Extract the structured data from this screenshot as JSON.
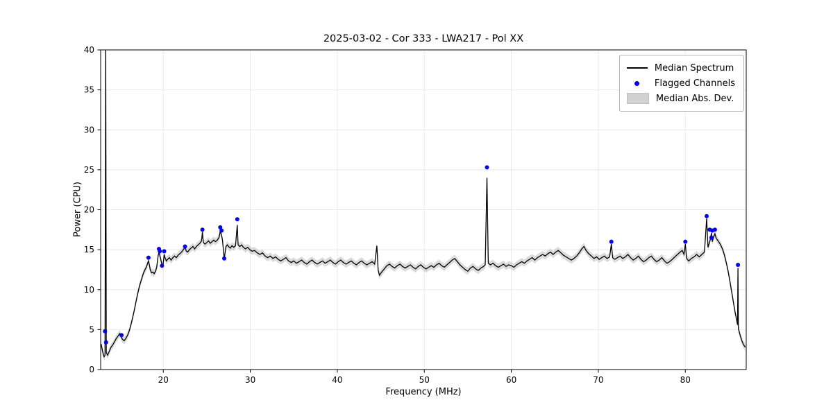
{
  "chart_data": {
    "type": "line",
    "title": "2025-03-02 - Cor 333 - LWA217 - Pol XX",
    "xlabel": "Frequency (MHz)",
    "ylabel": "Power (CPU)",
    "xlim": [
      12.8,
      87.0
    ],
    "ylim": [
      0,
      40
    ],
    "xticks": [
      20,
      30,
      40,
      50,
      60,
      70,
      80
    ],
    "yticks": [
      0,
      5,
      10,
      15,
      20,
      25,
      30,
      35,
      40
    ],
    "grid": true,
    "legend": {
      "position": "upper right",
      "median": "Median Spectrum",
      "flagged": "Flagged Channels",
      "mad": "Median Abs. Dev."
    },
    "colors": {
      "median": "#000000",
      "flagged": "#0000ff",
      "mad": "#c8c8c8",
      "grid": "#e8e8e8",
      "frame": "#000000"
    },
    "mad_halfwidth": 0.45,
    "median_spectrum": [
      [
        12.85,
        3.2
      ],
      [
        13.0,
        2.4
      ],
      [
        13.1,
        1.9
      ],
      [
        13.2,
        1.6
      ],
      [
        13.3,
        1.8
      ],
      [
        13.38,
        41.0
      ],
      [
        13.45,
        2.1
      ],
      [
        13.6,
        1.8
      ],
      [
        13.8,
        2.3
      ],
      [
        14.0,
        2.8
      ],
      [
        14.2,
        3.1
      ],
      [
        14.4,
        3.5
      ],
      [
        14.6,
        3.9
      ],
      [
        14.8,
        4.2
      ],
      [
        15.0,
        4.5
      ],
      [
        15.15,
        4.1
      ],
      [
        15.3,
        3.8
      ],
      [
        15.5,
        3.6
      ],
      [
        15.7,
        3.9
      ],
      [
        15.9,
        4.3
      ],
      [
        16.1,
        4.9
      ],
      [
        16.3,
        5.7
      ],
      [
        16.5,
        6.6
      ],
      [
        16.7,
        7.6
      ],
      [
        16.9,
        8.7
      ],
      [
        17.1,
        9.7
      ],
      [
        17.3,
        10.6
      ],
      [
        17.5,
        11.3
      ],
      [
        17.7,
        12.0
      ],
      [
        17.9,
        12.5
      ],
      [
        18.05,
        12.8
      ],
      [
        18.2,
        13.3
      ],
      [
        18.3,
        13.6
      ],
      [
        18.4,
        13.1
      ],
      [
        18.5,
        12.5
      ],
      [
        18.65,
        12.1
      ],
      [
        18.8,
        12.2
      ],
      [
        18.95,
        12.0
      ],
      [
        19.1,
        12.3
      ],
      [
        19.25,
        12.8
      ],
      [
        19.4,
        14.2
      ],
      [
        19.5,
        14.7
      ],
      [
        19.6,
        14.3
      ],
      [
        19.75,
        13.6
      ],
      [
        19.9,
        12.9
      ],
      [
        20.0,
        13.3
      ],
      [
        20.1,
        14.4
      ],
      [
        20.2,
        14.0
      ],
      [
        20.35,
        13.6
      ],
      [
        20.5,
        13.8
      ],
      [
        20.7,
        14.0
      ],
      [
        20.9,
        13.7
      ],
      [
        21.1,
        14.0
      ],
      [
        21.3,
        14.2
      ],
      [
        21.5,
        14.0
      ],
      [
        21.7,
        14.3
      ],
      [
        21.9,
        14.5
      ],
      [
        22.1,
        14.7
      ],
      [
        22.3,
        15.0
      ],
      [
        22.5,
        15.3
      ],
      [
        22.65,
        14.8
      ],
      [
        22.8,
        14.7
      ],
      [
        23.0,
        15.0
      ],
      [
        23.2,
        15.2
      ],
      [
        23.4,
        15.4
      ],
      [
        23.6,
        15.1
      ],
      [
        23.8,
        15.4
      ],
      [
        24.0,
        15.6
      ],
      [
        24.2,
        15.8
      ],
      [
        24.4,
        16.1
      ],
      [
        24.5,
        17.2
      ],
      [
        24.6,
        15.9
      ],
      [
        24.8,
        15.7
      ],
      [
        25.0,
        15.9
      ],
      [
        25.2,
        16.1
      ],
      [
        25.4,
        15.8
      ],
      [
        25.6,
        16.0
      ],
      [
        25.8,
        16.2
      ],
      [
        26.0,
        16.0
      ],
      [
        26.2,
        16.2
      ],
      [
        26.4,
        16.5
      ],
      [
        26.55,
        17.3
      ],
      [
        26.7,
        16.8
      ],
      [
        26.8,
        16.2
      ],
      [
        26.9,
        15.1
      ],
      [
        27.0,
        13.8
      ],
      [
        27.1,
        14.6
      ],
      [
        27.2,
        15.4
      ],
      [
        27.35,
        15.6
      ],
      [
        27.5,
        15.4
      ],
      [
        27.7,
        15.2
      ],
      [
        27.9,
        15.5
      ],
      [
        28.1,
        15.3
      ],
      [
        28.3,
        15.5
      ],
      [
        28.5,
        18.1
      ],
      [
        28.6,
        15.6
      ],
      [
        28.8,
        15.4
      ],
      [
        29.0,
        15.6
      ],
      [
        29.2,
        15.3
      ],
      [
        29.45,
        15.1
      ],
      [
        29.7,
        15.3
      ],
      [
        29.95,
        15.0
      ],
      [
        30.2,
        14.8
      ],
      [
        30.5,
        14.9
      ],
      [
        30.8,
        14.6
      ],
      [
        31.1,
        14.4
      ],
      [
        31.4,
        14.6
      ],
      [
        31.7,
        14.2
      ],
      [
        32.0,
        14.0
      ],
      [
        32.3,
        14.2
      ],
      [
        32.6,
        13.9
      ],
      [
        32.9,
        14.1
      ],
      [
        33.2,
        13.8
      ],
      [
        33.5,
        13.6
      ],
      [
        33.8,
        13.8
      ],
      [
        34.1,
        14.0
      ],
      [
        34.4,
        13.6
      ],
      [
        34.7,
        13.4
      ],
      [
        35.0,
        13.6
      ],
      [
        35.3,
        13.3
      ],
      [
        35.6,
        13.5
      ],
      [
        35.9,
        13.7
      ],
      [
        36.2,
        13.4
      ],
      [
        36.5,
        13.2
      ],
      [
        36.8,
        13.5
      ],
      [
        37.1,
        13.7
      ],
      [
        37.4,
        13.4
      ],
      [
        37.7,
        13.2
      ],
      [
        38.0,
        13.4
      ],
      [
        38.3,
        13.6
      ],
      [
        38.6,
        13.3
      ],
      [
        38.9,
        13.5
      ],
      [
        39.2,
        13.7
      ],
      [
        39.5,
        13.4
      ],
      [
        39.8,
        13.2
      ],
      [
        40.1,
        13.5
      ],
      [
        40.4,
        13.7
      ],
      [
        40.7,
        13.4
      ],
      [
        41.0,
        13.2
      ],
      [
        41.3,
        13.4
      ],
      [
        41.6,
        13.6
      ],
      [
        41.9,
        13.3
      ],
      [
        42.2,
        13.1
      ],
      [
        42.5,
        13.4
      ],
      [
        42.8,
        13.6
      ],
      [
        43.1,
        13.3
      ],
      [
        43.4,
        13.1
      ],
      [
        43.7,
        13.3
      ],
      [
        44.0,
        13.5
      ],
      [
        44.3,
        13.2
      ],
      [
        44.55,
        15.5
      ],
      [
        44.7,
        12.4
      ],
      [
        44.85,
        11.8
      ],
      [
        45.1,
        12.2
      ],
      [
        45.4,
        12.6
      ],
      [
        45.7,
        13.0
      ],
      [
        46.0,
        13.2
      ],
      [
        46.3,
        12.9
      ],
      [
        46.6,
        12.7
      ],
      [
        46.9,
        13.0
      ],
      [
        47.2,
        13.2
      ],
      [
        47.5,
        12.9
      ],
      [
        47.8,
        12.7
      ],
      [
        48.1,
        12.9
      ],
      [
        48.4,
        13.1
      ],
      [
        48.7,
        12.8
      ],
      [
        49.0,
        12.6
      ],
      [
        49.3,
        12.9
      ],
      [
        49.6,
        13.1
      ],
      [
        49.9,
        12.8
      ],
      [
        50.2,
        12.6
      ],
      [
        50.5,
        12.8
      ],
      [
        50.8,
        13.0
      ],
      [
        51.1,
        12.8
      ],
      [
        51.4,
        13.1
      ],
      [
        51.7,
        13.3
      ],
      [
        52.0,
        13.0
      ],
      [
        52.3,
        12.8
      ],
      [
        52.6,
        13.1
      ],
      [
        52.9,
        13.4
      ],
      [
        53.2,
        13.7
      ],
      [
        53.5,
        13.9
      ],
      [
        53.8,
        13.5
      ],
      [
        54.1,
        13.1
      ],
      [
        54.4,
        12.8
      ],
      [
        54.7,
        12.5
      ],
      [
        55.0,
        12.3
      ],
      [
        55.3,
        12.7
      ],
      [
        55.6,
        12.9
      ],
      [
        55.9,
        12.6
      ],
      [
        56.2,
        12.4
      ],
      [
        56.5,
        12.7
      ],
      [
        56.8,
        12.9
      ],
      [
        57.0,
        13.1
      ],
      [
        57.2,
        24.0
      ],
      [
        57.35,
        13.3
      ],
      [
        57.6,
        13.1
      ],
      [
        57.9,
        13.3
      ],
      [
        58.2,
        13.0
      ],
      [
        58.5,
        12.8
      ],
      [
        58.8,
        13.0
      ],
      [
        59.1,
        13.2
      ],
      [
        59.4,
        12.9
      ],
      [
        59.7,
        13.1
      ],
      [
        60.0,
        13.0
      ],
      [
        60.3,
        12.8
      ],
      [
        60.6,
        13.1
      ],
      [
        60.9,
        13.3
      ],
      [
        61.2,
        13.5
      ],
      [
        61.5,
        13.3
      ],
      [
        61.8,
        13.6
      ],
      [
        62.1,
        13.8
      ],
      [
        62.4,
        14.0
      ],
      [
        62.7,
        13.7
      ],
      [
        63.0,
        14.0
      ],
      [
        63.3,
        14.2
      ],
      [
        63.6,
        14.4
      ],
      [
        63.9,
        14.2
      ],
      [
        64.2,
        14.5
      ],
      [
        64.5,
        14.7
      ],
      [
        64.8,
        14.4
      ],
      [
        65.1,
        14.7
      ],
      [
        65.4,
        14.9
      ],
      [
        65.7,
        14.6
      ],
      [
        66.0,
        14.3
      ],
      [
        66.3,
        14.1
      ],
      [
        66.6,
        13.9
      ],
      [
        66.9,
        13.7
      ],
      [
        67.2,
        13.9
      ],
      [
        67.5,
        14.2
      ],
      [
        67.8,
        14.6
      ],
      [
        68.1,
        15.1
      ],
      [
        68.35,
        15.4
      ],
      [
        68.6,
        14.9
      ],
      [
        68.9,
        14.5
      ],
      [
        69.2,
        14.2
      ],
      [
        69.5,
        13.9
      ],
      [
        69.8,
        14.1
      ],
      [
        70.1,
        13.8
      ],
      [
        70.4,
        14.0
      ],
      [
        70.7,
        14.2
      ],
      [
        71.0,
        13.9
      ],
      [
        71.3,
        14.1
      ],
      [
        71.5,
        15.7
      ],
      [
        71.65,
        14.0
      ],
      [
        71.9,
        13.8
      ],
      [
        72.2,
        14.0
      ],
      [
        72.5,
        14.2
      ],
      [
        72.8,
        13.9
      ],
      [
        73.1,
        14.1
      ],
      [
        73.4,
        14.4
      ],
      [
        73.7,
        14.0
      ],
      [
        74.0,
        13.7
      ],
      [
        74.3,
        13.9
      ],
      [
        74.6,
        14.2
      ],
      [
        74.9,
        13.8
      ],
      [
        75.2,
        13.5
      ],
      [
        75.5,
        13.7
      ],
      [
        75.8,
        14.0
      ],
      [
        76.1,
        14.2
      ],
      [
        76.4,
        13.8
      ],
      [
        76.7,
        13.5
      ],
      [
        77.0,
        13.7
      ],
      [
        77.3,
        14.0
      ],
      [
        77.6,
        13.6
      ],
      [
        77.9,
        13.3
      ],
      [
        78.2,
        13.5
      ],
      [
        78.5,
        13.8
      ],
      [
        78.8,
        14.1
      ],
      [
        79.1,
        14.4
      ],
      [
        79.4,
        14.7
      ],
      [
        79.65,
        14.9
      ],
      [
        79.85,
        14.4
      ],
      [
        80.0,
        15.7
      ],
      [
        80.15,
        13.9
      ],
      [
        80.4,
        13.6
      ],
      [
        80.7,
        13.9
      ],
      [
        81.0,
        14.1
      ],
      [
        81.3,
        14.4
      ],
      [
        81.6,
        14.1
      ],
      [
        81.9,
        14.4
      ],
      [
        82.2,
        14.7
      ],
      [
        82.45,
        18.9
      ],
      [
        82.6,
        15.3
      ],
      [
        82.75,
        15.8
      ],
      [
        82.9,
        16.4
      ],
      [
        83.0,
        17.1
      ],
      [
        83.1,
        16.0
      ],
      [
        83.25,
        16.6
      ],
      [
        83.4,
        17.0
      ],
      [
        83.55,
        16.4
      ],
      [
        83.7,
        16.2
      ],
      [
        83.9,
        15.9
      ],
      [
        84.1,
        15.5
      ],
      [
        84.3,
        15.0
      ],
      [
        84.5,
        14.3
      ],
      [
        84.7,
        13.4
      ],
      [
        84.9,
        12.4
      ],
      [
        85.1,
        11.2
      ],
      [
        85.3,
        9.9
      ],
      [
        85.5,
        8.6
      ],
      [
        85.7,
        7.3
      ],
      [
        85.9,
        6.2
      ],
      [
        86.0,
        5.6
      ],
      [
        86.05,
        12.7
      ],
      [
        86.1,
        5.1
      ],
      [
        86.3,
        4.3
      ],
      [
        86.5,
        3.6
      ],
      [
        86.7,
        3.1
      ],
      [
        86.9,
        2.8
      ]
    ],
    "flagged_channels": [
      [
        13.3,
        4.8
      ],
      [
        13.42,
        3.4
      ],
      [
        15.2,
        4.3
      ],
      [
        18.3,
        14.0
      ],
      [
        19.5,
        15.1
      ],
      [
        19.6,
        14.8
      ],
      [
        19.85,
        13.0
      ],
      [
        20.1,
        14.8
      ],
      [
        22.5,
        15.4
      ],
      [
        24.5,
        17.5
      ],
      [
        26.55,
        17.8
      ],
      [
        26.7,
        17.4
      ],
      [
        27.0,
        13.9
      ],
      [
        28.5,
        18.8
      ],
      [
        57.2,
        25.3
      ],
      [
        71.5,
        16.0
      ],
      [
        80.0,
        16.0
      ],
      [
        82.45,
        19.2
      ],
      [
        82.8,
        17.5
      ],
      [
        83.0,
        16.5
      ],
      [
        83.1,
        17.4
      ],
      [
        83.4,
        17.5
      ],
      [
        86.05,
        13.1
      ]
    ]
  }
}
